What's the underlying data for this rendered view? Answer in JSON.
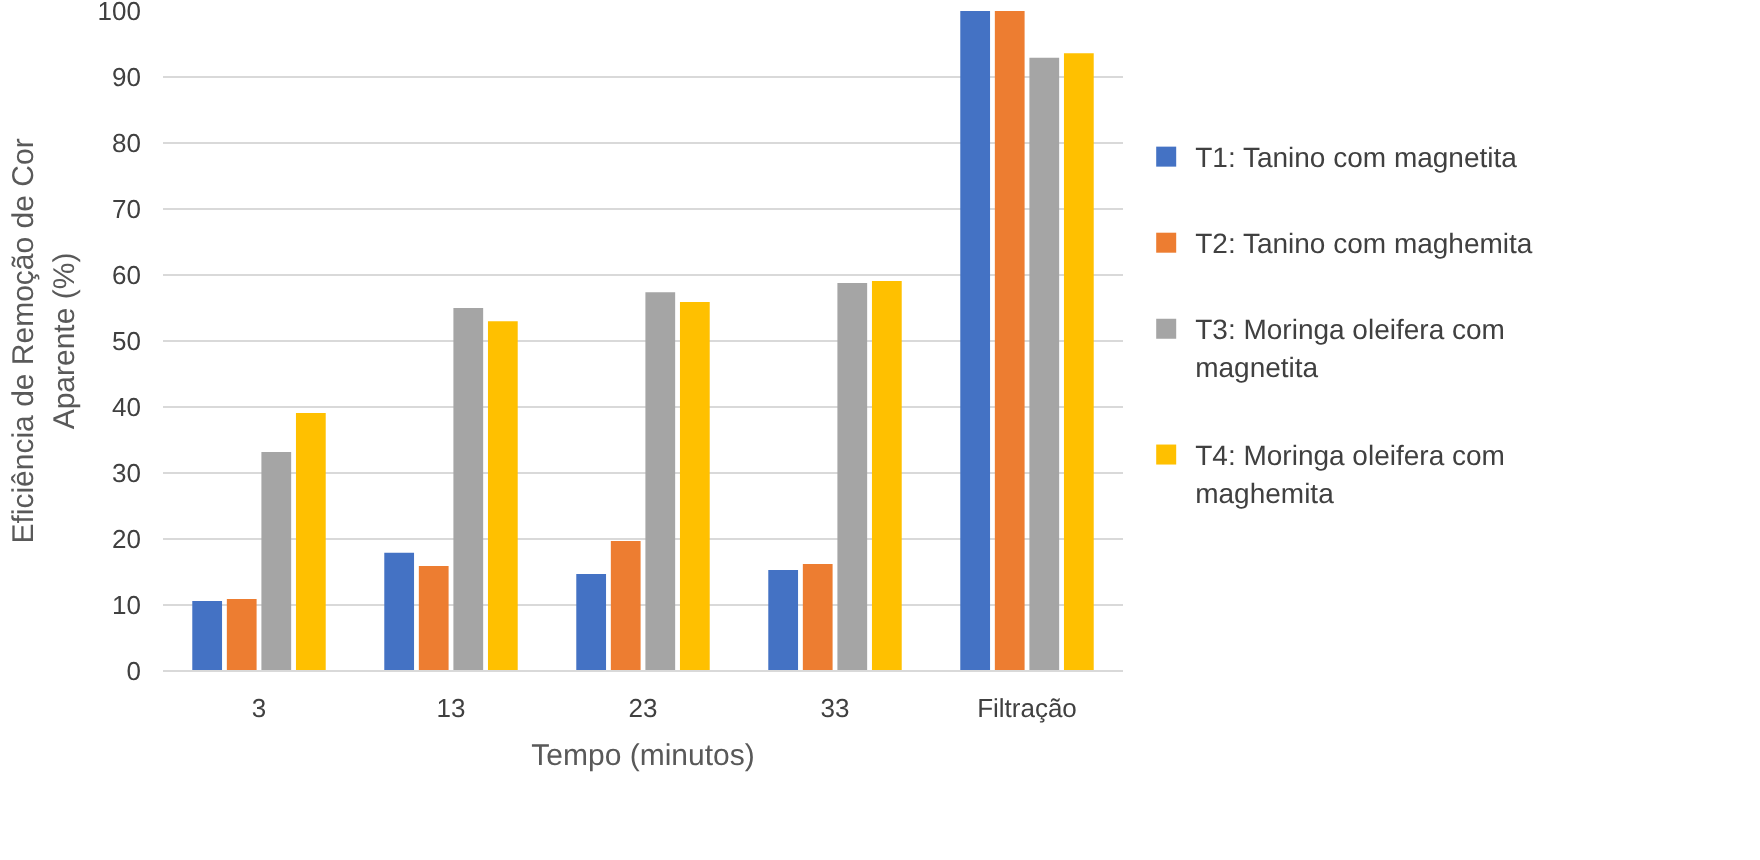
{
  "chart_data": {
    "type": "bar",
    "xlabel": "Tempo (minutos)",
    "ylabel": "Eficiência de Remoção de Cor Aparente (%)",
    "categories": [
      "3",
      "13",
      "23",
      "33",
      "Filtração"
    ],
    "series": [
      {
        "name": "T1: Tanino com magnetita",
        "color": "#4472c4",
        "values": [
          10.6,
          17.9,
          14.7,
          15.3,
          100
        ]
      },
      {
        "name": "T2: Tanino com maghemita",
        "color": "#ed7d31",
        "values": [
          10.9,
          15.9,
          19.7,
          16.2,
          100
        ]
      },
      {
        "name": "T3: Moringa oleifera com magnetita",
        "color": "#a5a5a5",
        "values": [
          33.2,
          55,
          57.4,
          58.8,
          92.9
        ]
      },
      {
        "name": "T4: Moringa oleifera com maghemita",
        "color": "#ffc000",
        "values": [
          39.1,
          53,
          55.9,
          59.1,
          93.6
        ]
      }
    ],
    "ylim": [
      0,
      100
    ],
    "yticks": [
      0,
      10,
      20,
      30,
      40,
      50,
      60,
      70,
      80,
      90,
      100
    ],
    "grid": "y",
    "legend": "right"
  }
}
